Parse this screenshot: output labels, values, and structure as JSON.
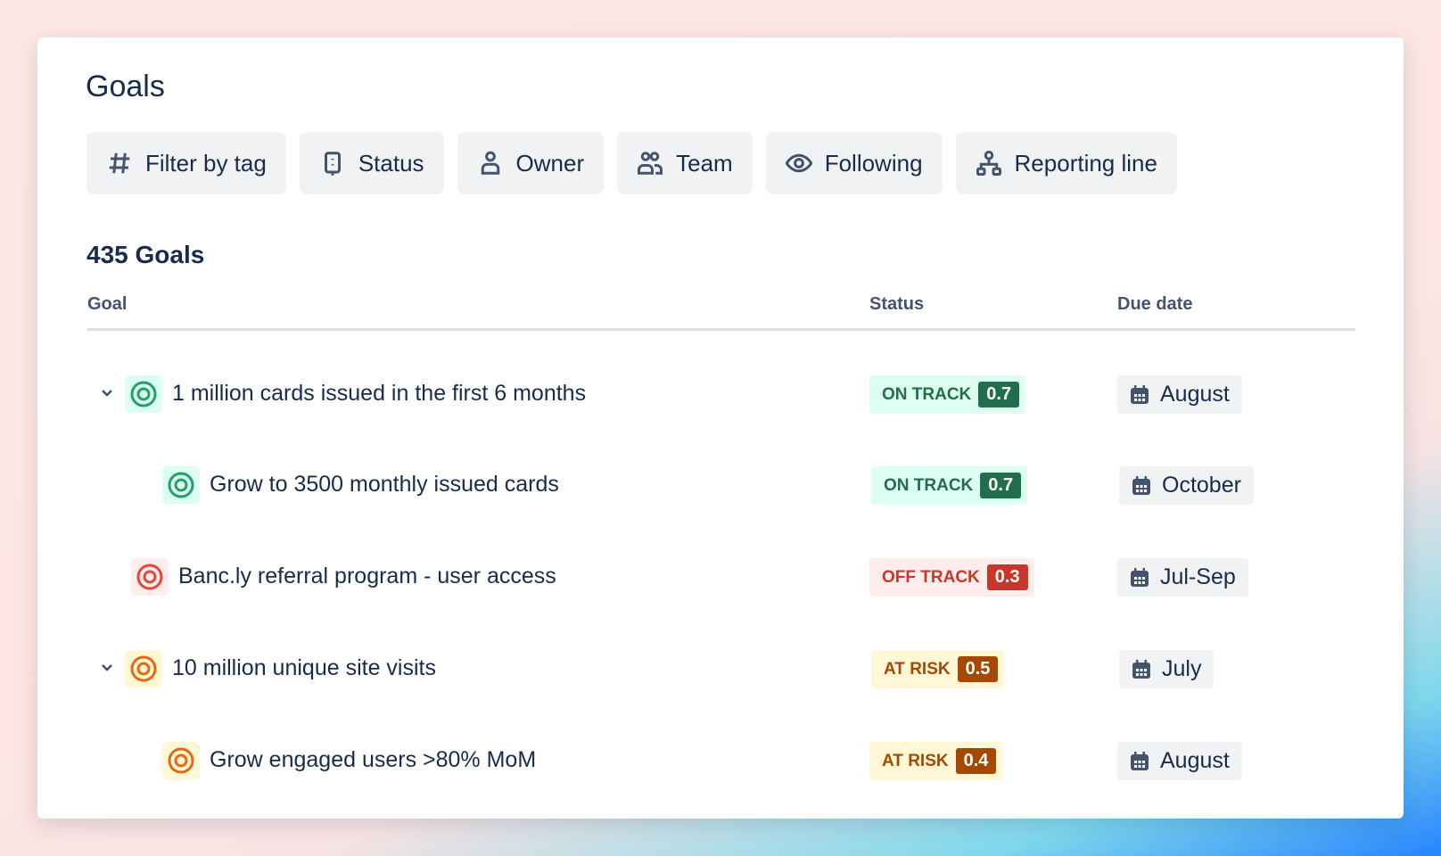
{
  "title": "Goals",
  "filters": [
    {
      "label": "Filter by tag",
      "icon": "hash-icon"
    },
    {
      "label": "Status",
      "icon": "status-icon"
    },
    {
      "label": "Owner",
      "icon": "person-icon"
    },
    {
      "label": "Team",
      "icon": "people-icon"
    },
    {
      "label": "Following",
      "icon": "eye-icon"
    },
    {
      "label": "Reporting line",
      "icon": "hierarchy-icon"
    }
  ],
  "count": "435 Goals",
  "columns": {
    "goal": "Goal",
    "status": "Status",
    "due": "Due date"
  },
  "rows": [
    {
      "name": "1 million cards issued in the first 6 months",
      "status": "ON TRACK",
      "score": "0.7",
      "due": "August",
      "expandable": true,
      "level": 0
    },
    {
      "name": "Grow to 3500 monthly issued cards",
      "status": "ON TRACK",
      "score": "0.7",
      "due": "October",
      "expandable": false,
      "level": 1
    },
    {
      "name": "Banc.ly referral program - user access",
      "status": "OFF TRACK",
      "score": "0.3",
      "due": "Jul-Sep",
      "expandable": false,
      "level": 0
    },
    {
      "name": "10 million unique site visits",
      "status": "AT RISK",
      "score": "0.5",
      "due": "July",
      "expandable": true,
      "level": 0
    },
    {
      "name": "Grow engaged users >80% MoM",
      "status": "AT RISK",
      "score": "0.4",
      "due": "August",
      "expandable": false,
      "level": 1
    }
  ],
  "colors": {
    "on_track": "#216e4e",
    "on_track_bg": "#dcfff1",
    "off_track": "#c9372c",
    "off_track_bg": "#ffeceb",
    "at_risk": "#a54800",
    "at_risk_bg": "#fff7d6"
  }
}
